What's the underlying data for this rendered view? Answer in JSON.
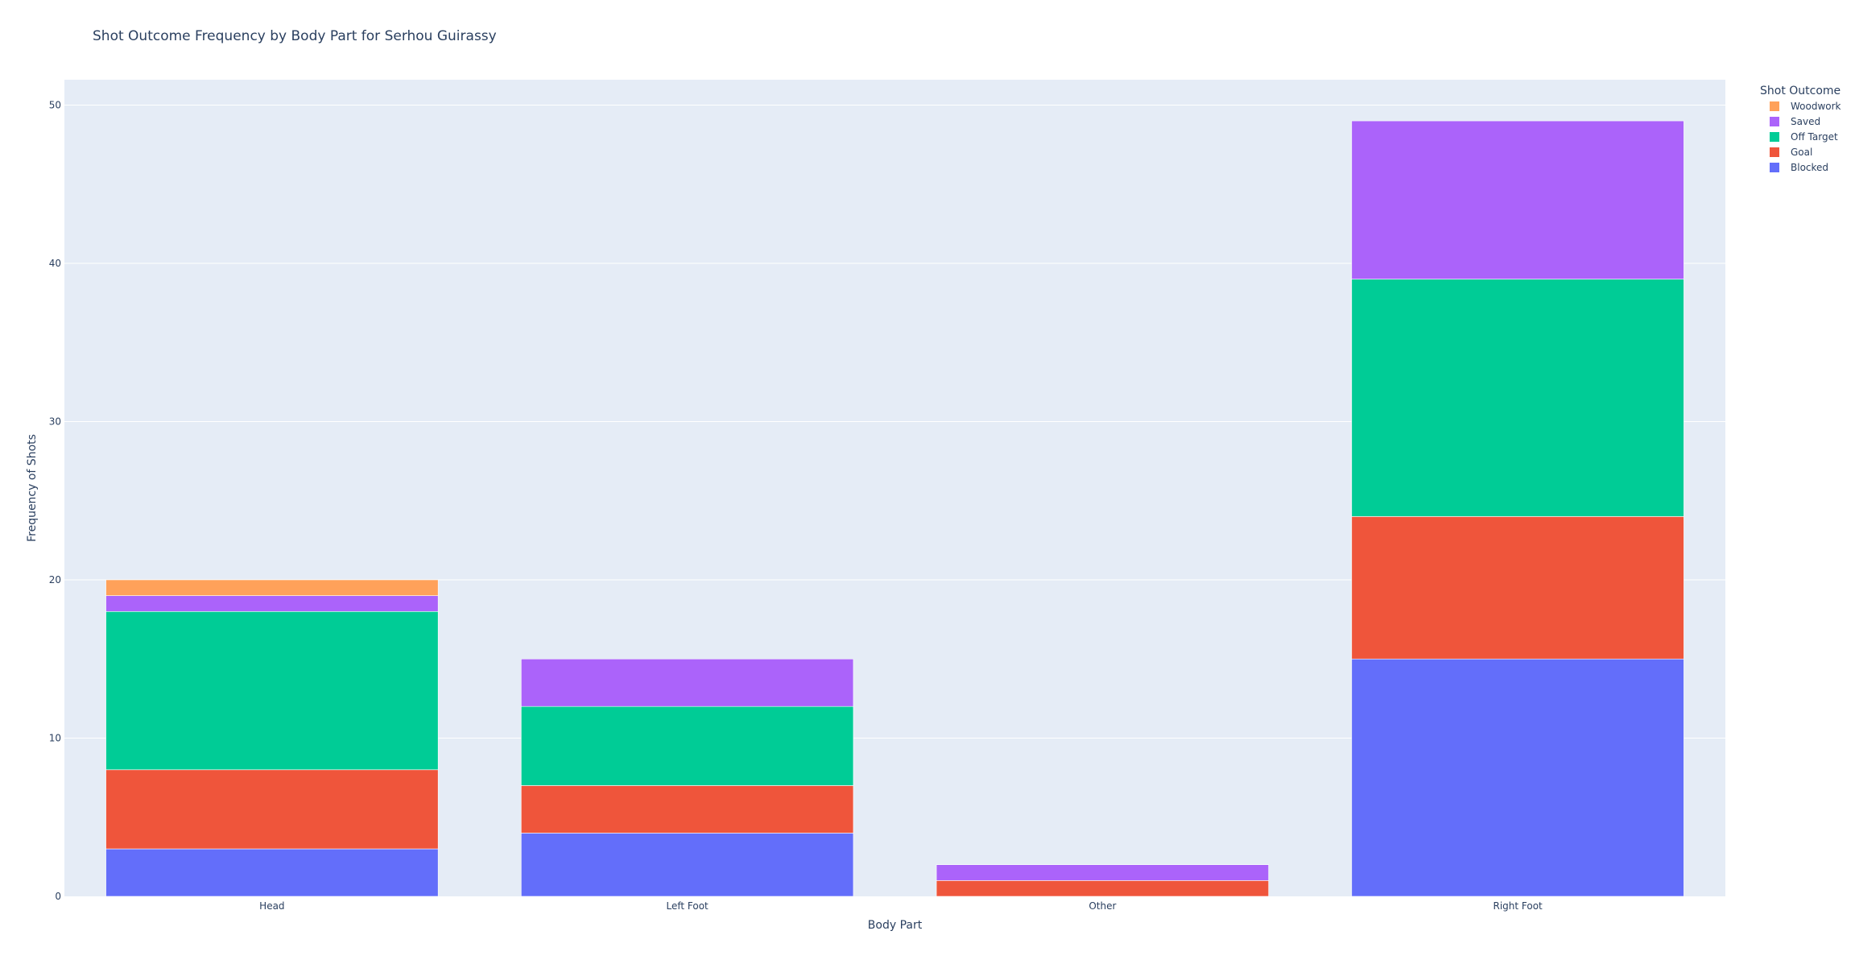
{
  "chart_data": {
    "type": "bar",
    "barmode": "stack",
    "title": "Shot Outcome Frequency by Body Part for Serhou Guirassy",
    "xlabel": "Body Part",
    "ylabel": "Frequency of Shots",
    "categories": [
      "Head",
      "Left Foot",
      "Other",
      "Right Foot"
    ],
    "ylim": [
      0,
      51.6
    ],
    "yticks": [
      0,
      10,
      20,
      30,
      40,
      50
    ],
    "grid": true,
    "legend": {
      "title": "Shot Outcome",
      "placement": "top-right"
    },
    "series": [
      {
        "name": "Blocked",
        "color": "#636efa",
        "values": [
          3,
          4,
          0,
          15
        ]
      },
      {
        "name": "Goal",
        "color": "#ef553b",
        "values": [
          5,
          3,
          1,
          9
        ]
      },
      {
        "name": "Off Target",
        "color": "#00cc96",
        "values": [
          10,
          5,
          0,
          15
        ]
      },
      {
        "name": "Saved",
        "color": "#ab63fa",
        "values": [
          1,
          3,
          1,
          10
        ]
      },
      {
        "name": "Woodwork",
        "color": "#ffa15a",
        "values": [
          1,
          0,
          0,
          0
        ]
      }
    ],
    "plot_bgcolor": "#e5ecf6",
    "text_color": "#2a3f5f"
  }
}
